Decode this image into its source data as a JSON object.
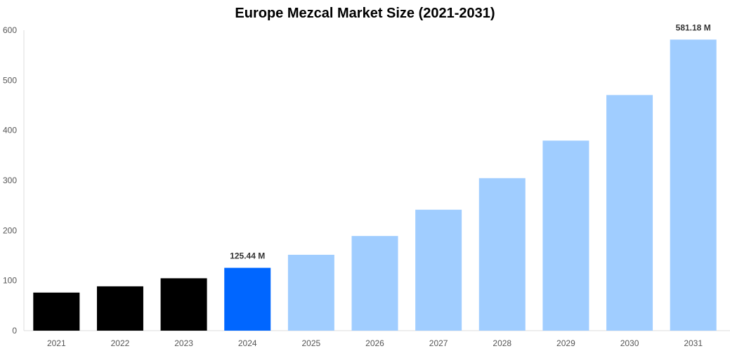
{
  "chart_data": {
    "type": "bar",
    "title": "Europe Mezcal Market Size (2021-2031)",
    "xlabel": "",
    "ylabel": "",
    "categories": [
      "2021",
      "2022",
      "2023",
      "2024",
      "2025",
      "2026",
      "2027",
      "2028",
      "2029",
      "2030",
      "2031"
    ],
    "values": [
      76,
      88.5,
      104.6,
      125.44,
      151.5,
      189,
      241.5,
      304.5,
      379.5,
      470.5,
      581.18
    ],
    "data_labels": {
      "3": "125.44 M",
      "10": "581.18 M"
    },
    "ylim": [
      0,
      600
    ],
    "yticks": [
      0,
      100,
      200,
      300,
      400,
      500,
      600
    ],
    "grid": false,
    "colors": {
      "historical": "#000000",
      "current": "#0066ff",
      "forecast": "#a0cdff"
    }
  }
}
